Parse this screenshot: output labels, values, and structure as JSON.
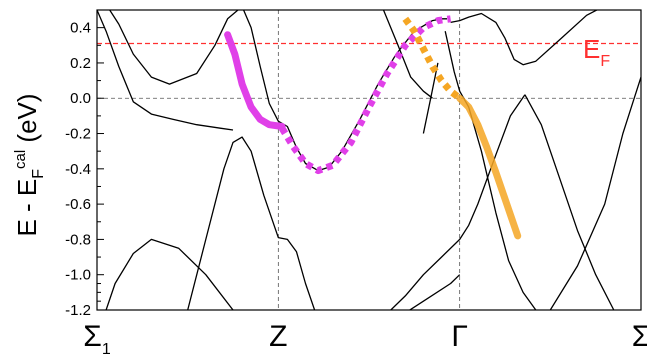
{
  "chart_data": {
    "type": "line",
    "title": "",
    "ylabel": {
      "main": "E - E",
      "sub": "F",
      "sup": "cal",
      "unit": " (eV)"
    },
    "ylim": [
      -1.2,
      0.5
    ],
    "yticks": [
      {
        "v": 0.4,
        "label": "0.4"
      },
      {
        "v": 0.2,
        "label": "0.2"
      },
      {
        "v": 0.0,
        "label": "0.0"
      },
      {
        "v": -0.2,
        "label": "-0.2"
      },
      {
        "v": -0.4,
        "label": "-0.4"
      },
      {
        "v": -0.6,
        "label": "-0.6"
      },
      {
        "v": -0.8,
        "label": "-0.8"
      },
      {
        "v": -1.0,
        "label": "-1.0"
      },
      {
        "v": -1.2,
        "label": "-1.2"
      }
    ],
    "xlim": [
      0,
      3
    ],
    "kpoints": [
      {
        "x": 0,
        "main": "Σ",
        "sub": "1"
      },
      {
        "x": 1,
        "main": "Z",
        "sub": ""
      },
      {
        "x": 2,
        "main": "Γ",
        "sub": ""
      },
      {
        "x": 3,
        "main": "Σ",
        "sub": ""
      }
    ],
    "fermi_level": {
      "value": 0.31,
      "main": "E",
      "sub": "F",
      "color": "#ff3030"
    },
    "zero_line": 0.0,
    "bands": [
      {
        "x": [
          0.05,
          0.1,
          0.2,
          0.3,
          0.45,
          0.6,
          0.75,
          0.9,
          1.0,
          1.05,
          1.15,
          1.3,
          1.45,
          1.55,
          1.65,
          1.8,
          1.95,
          2.0
        ],
        "y": [
          -1.2,
          -1.05,
          -0.88,
          -0.8,
          -0.85,
          -1.0,
          -1.2,
          -1.4,
          -1.5,
          -1.5,
          -1.45,
          -1.35,
          -1.3,
          -1.28,
          -1.25,
          -1.15,
          -1.05,
          -1.0
        ]
      },
      {
        "x": [
          0.5,
          0.6,
          0.7,
          0.75,
          0.8,
          0.85,
          0.92,
          1.0,
          1.05,
          1.1,
          1.15,
          1.2
        ],
        "y": [
          -1.2,
          -0.8,
          -0.4,
          -0.25,
          -0.22,
          -0.3,
          -0.55,
          -0.79,
          -0.8,
          -0.87,
          -1.05,
          -1.2
        ]
      },
      {
        "x": [
          0.0,
          0.05,
          0.12,
          0.2,
          0.3,
          0.42,
          0.55,
          0.68,
          0.75
        ],
        "y": [
          0.5,
          0.38,
          0.18,
          -0.02,
          -0.09,
          -0.12,
          -0.15,
          -0.17,
          -0.18
        ]
      },
      {
        "x": [
          0.07,
          0.12,
          0.2,
          0.3,
          0.4,
          0.55,
          0.65,
          0.72,
          0.8,
          0.85,
          0.9,
          0.95,
          1.0,
          1.05,
          1.1,
          1.15,
          1.22,
          1.28,
          1.35,
          1.45,
          1.55,
          1.65,
          1.75,
          1.85,
          1.9,
          1.93
        ],
        "y": [
          0.5,
          0.42,
          0.25,
          0.12,
          0.08,
          0.14,
          0.3,
          0.45,
          0.52,
          0.4,
          0.18,
          -0.03,
          -0.13,
          -0.16,
          -0.28,
          -0.37,
          -0.41,
          -0.39,
          -0.3,
          -0.12,
          0.08,
          0.25,
          0.38,
          0.44,
          0.45,
          0.45
        ]
      },
      {
        "x": [
          1.62,
          1.7,
          1.8,
          1.9,
          2.0,
          2.05,
          2.1,
          2.2,
          2.28,
          2.36
        ],
        "y": [
          -1.2,
          -1.12,
          -1.0,
          -0.9,
          -0.8,
          -0.72,
          -0.6,
          -0.32,
          -0.1,
          0.02
        ]
      },
      {
        "x": [
          1.95,
          2.0,
          2.05,
          2.12,
          2.2,
          2.25,
          2.3,
          2.35,
          2.42,
          2.55,
          2.7,
          2.85,
          3.0
        ],
        "y": [
          0.43,
          0.44,
          0.46,
          0.48,
          0.43,
          0.34,
          0.22,
          0.19,
          0.21,
          0.33,
          0.47,
          0.55,
          0.6
        ]
      },
      {
        "x": [
          2.36,
          2.45,
          2.55,
          2.65,
          2.75,
          2.85
        ],
        "y": [
          0.02,
          -0.15,
          -0.45,
          -0.75,
          -1.0,
          -1.2
        ]
      },
      {
        "x": [
          1.92,
          1.97,
          2.0,
          2.05,
          2.12,
          2.2,
          2.27,
          2.35,
          2.42
        ],
        "y": [
          0.38,
          0.15,
          0.04,
          -0.05,
          -0.3,
          -0.65,
          -0.92,
          -1.1,
          -1.2
        ]
      },
      {
        "x": [
          1.58,
          1.66,
          1.73,
          1.8,
          1.85
        ],
        "y": [
          0.5,
          0.3,
          0.12,
          0.04,
          0.0
        ]
      },
      {
        "x": [
          1.8,
          1.84,
          1.88
        ],
        "y": [
          -0.2,
          0.0,
          0.2
        ]
      },
      {
        "x": [
          2.5,
          2.65,
          2.8,
          2.9,
          3.0
        ],
        "y": [
          -1.2,
          -0.95,
          -0.6,
          -0.2,
          0.12
        ]
      }
    ],
    "highlights": [
      {
        "color": "#e040e8",
        "style": "solid",
        "width": 7,
        "x": [
          0.72,
          0.76,
          0.8,
          0.85,
          0.9,
          0.95,
          1.02
        ],
        "y": [
          0.36,
          0.25,
          0.08,
          -0.05,
          -0.12,
          -0.15,
          -0.16
        ]
      },
      {
        "color": "#e040e8",
        "style": "dotted",
        "width": 7,
        "x": [
          1.02,
          1.08,
          1.15,
          1.22,
          1.3,
          1.4,
          1.5,
          1.6,
          1.7,
          1.8,
          1.88,
          1.95
        ],
        "y": [
          -0.17,
          -0.27,
          -0.37,
          -0.41,
          -0.38,
          -0.25,
          -0.05,
          0.14,
          0.3,
          0.4,
          0.44,
          0.45
        ]
      },
      {
        "color": "#f5a623",
        "style": "dotted",
        "width": 7,
        "x": [
          1.7,
          1.75,
          1.8,
          1.85,
          1.9,
          1.95,
          2.0
        ],
        "y": [
          0.45,
          0.38,
          0.28,
          0.18,
          0.1,
          0.04,
          0.0
        ]
      },
      {
        "color": "#f5a623",
        "style": "solid",
        "width": 7,
        "x": [
          2.0,
          2.05,
          2.1,
          2.15,
          2.2,
          2.26,
          2.32
        ],
        "y": [
          0.0,
          -0.05,
          -0.15,
          -0.28,
          -0.42,
          -0.6,
          -0.78
        ]
      }
    ]
  }
}
